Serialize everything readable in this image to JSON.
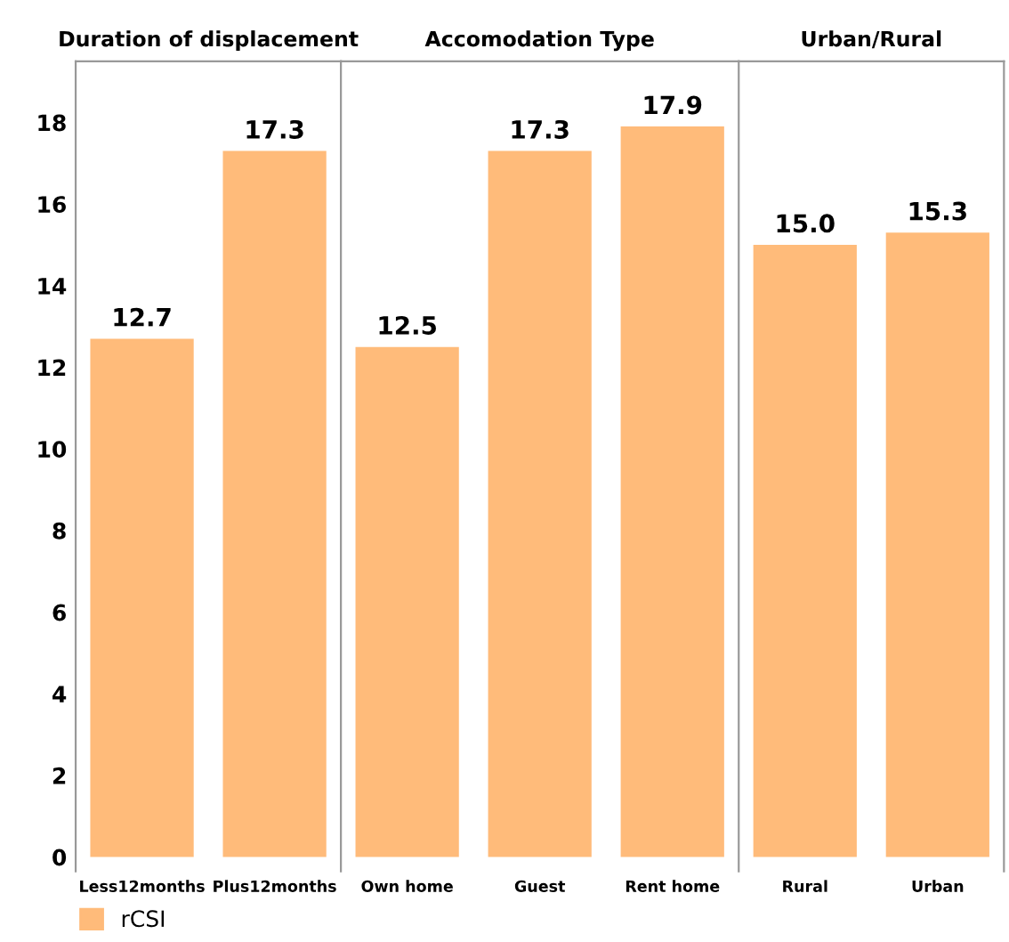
{
  "chart_data": [
    {
      "type": "bar",
      "title": "Duration of displacement",
      "categories": [
        "Less12months",
        "Plus12months"
      ],
      "series": [
        {
          "name": "rCSI",
          "color": "#ffbb7a",
          "values": [
            12.7,
            17.3
          ]
        }
      ],
      "value_labels": [
        "12.7",
        "17.3"
      ],
      "ylim": [
        -0.35,
        19.5
      ],
      "yticks": [
        0,
        2,
        4,
        6,
        8,
        10,
        12,
        14,
        16,
        18
      ],
      "legend": "bottom"
    },
    {
      "type": "bar",
      "title": "Accomodation Type",
      "categories": [
        "Own home",
        "Guest",
        "Rent home"
      ],
      "series": [
        {
          "color": "#ffbb7a",
          "values": [
            12.5,
            17.3,
            17.9
          ]
        }
      ],
      "value_labels": [
        "12.5",
        "17.3",
        "17.9"
      ],
      "ylim": [
        -0.35,
        19.5
      ],
      "tick_labels": "x"
    },
    {
      "type": "bar",
      "title": "Urban/Rural",
      "categories": [
        "Rural",
        "Urban"
      ],
      "series": [
        {
          "color": "#ffbb7a",
          "values": [
            15.0,
            15.3
          ]
        }
      ],
      "value_labels": [
        "15.0",
        "15.3"
      ],
      "ylim": [
        -0.35,
        19.5
      ],
      "tick_labels": "x"
    }
  ]
}
